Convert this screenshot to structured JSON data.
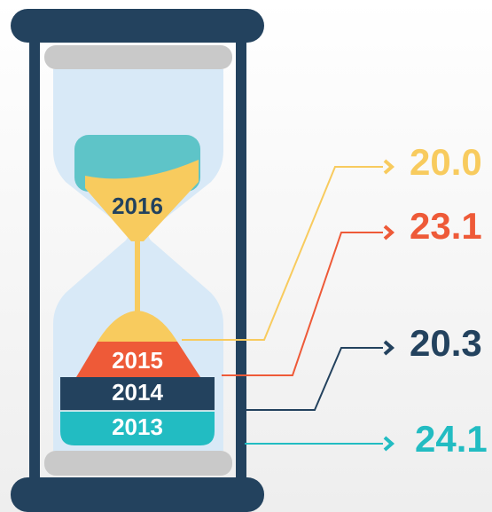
{
  "items": [
    {
      "year": "2016",
      "value": "20.0",
      "color": "#f8cb5e"
    },
    {
      "year": "2015",
      "value": "23.1",
      "color": "#ee5a38"
    },
    {
      "year": "2014",
      "value": "20.3",
      "color": "#23425e"
    },
    {
      "year": "2013",
      "value": "24.1",
      "color": "#22bcc2"
    }
  ]
}
